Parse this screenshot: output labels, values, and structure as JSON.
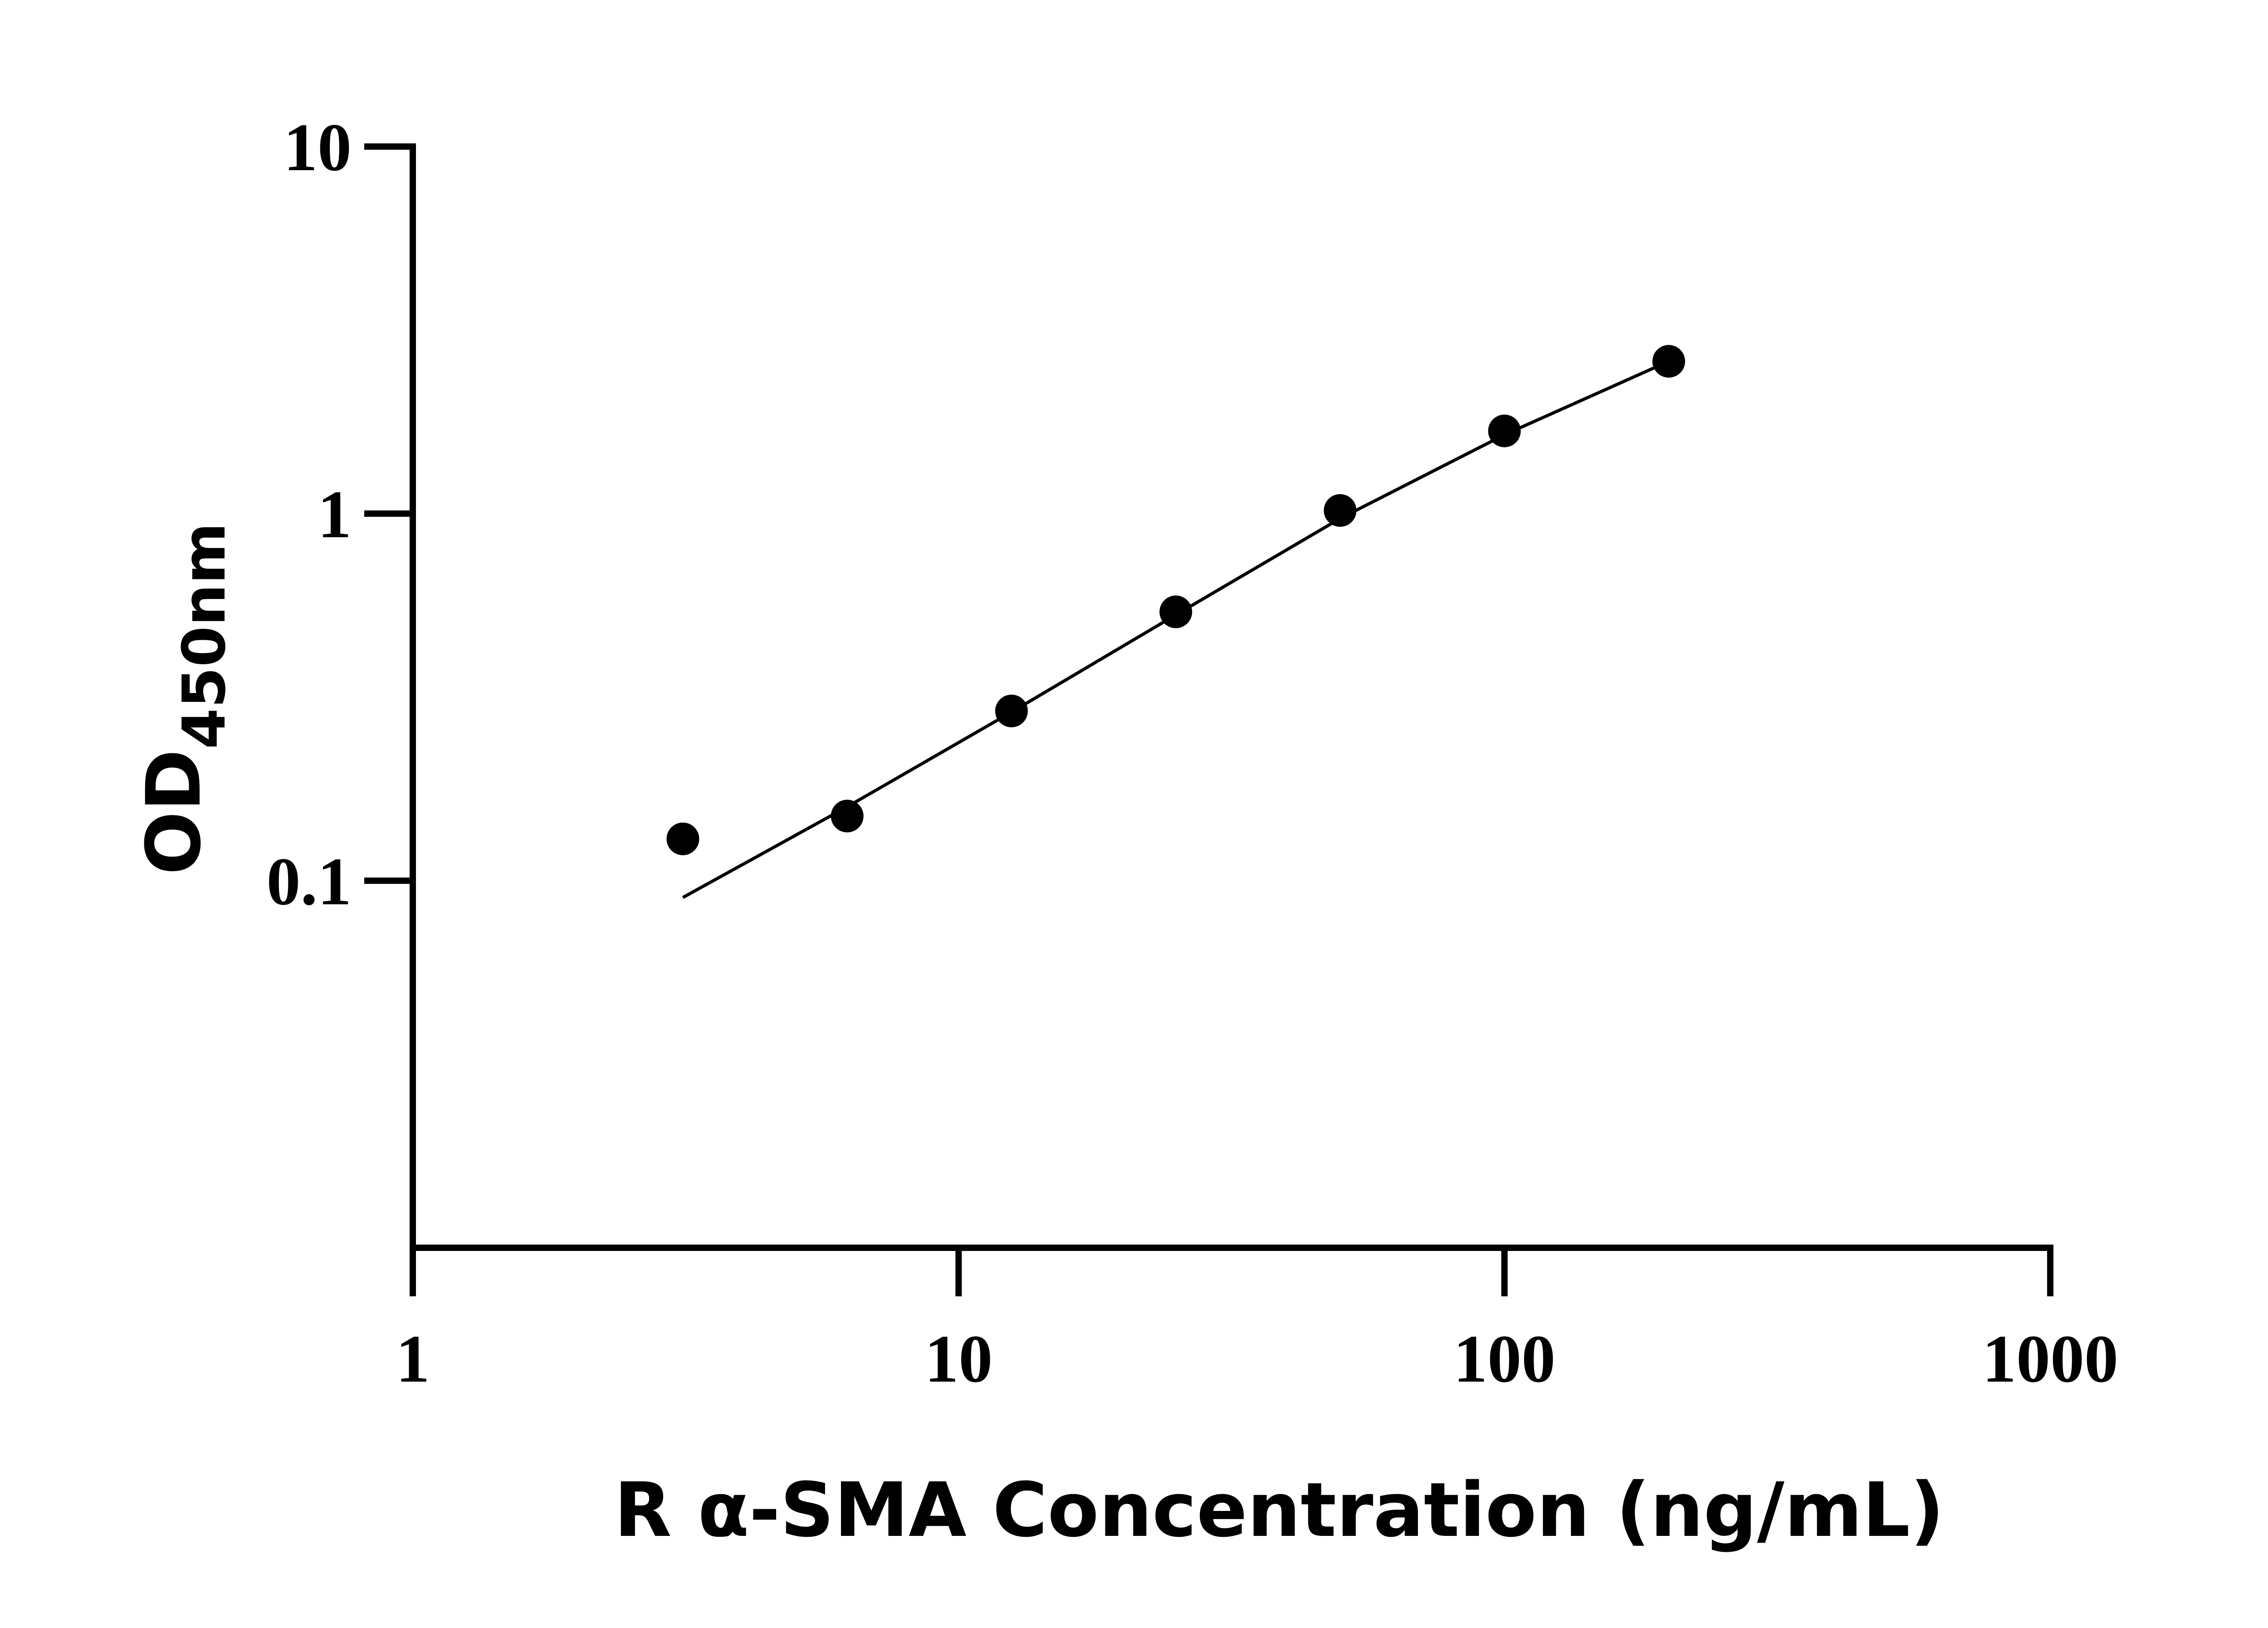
{
  "chart_data": {
    "type": "scatter",
    "x_scale": "log",
    "y_scale": "log",
    "xlabel": "R α-SMA Concentration (ng/mL)",
    "ylabel_main": "OD",
    "ylabel_sub": "450nm",
    "xlim": [
      1,
      1000
    ],
    "ylim": [
      0.01,
      10
    ],
    "x_ticks": [
      1,
      10,
      100,
      1000
    ],
    "x_tick_labels": [
      "1",
      "10",
      "100",
      "1000"
    ],
    "y_ticks": [
      0.1,
      1,
      10
    ],
    "y_tick_labels": [
      "0.1",
      "1",
      "10"
    ],
    "grid": false,
    "series": [
      {
        "type": "scatter",
        "x": [
          3.125,
          6.25,
          12.5,
          25,
          50,
          100,
          200
        ],
        "y": [
          0.13,
          0.15,
          0.29,
          0.54,
          1.02,
          1.68,
          2.6
        ]
      },
      {
        "type": "line",
        "x": [
          3.125,
          6.25,
          12.5,
          25,
          50,
          100,
          200
        ],
        "y": [
          0.09,
          0.159,
          0.288,
          0.53,
          0.97,
          1.64,
          2.6
        ]
      }
    ],
    "colors": {
      "axis": "#000000",
      "points": "#000000",
      "line": "#000000"
    }
  }
}
